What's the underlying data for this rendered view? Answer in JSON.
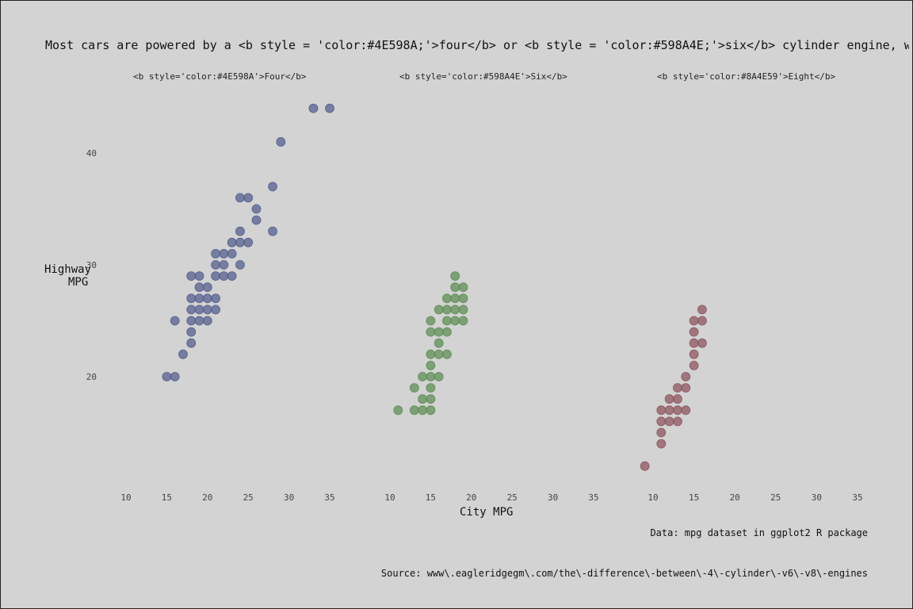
{
  "chart_data": {
    "type": "scatter",
    "title": "Most cars are powered by a <b style = 'color:#4E598A;'>four</b> or <b style = 'color:#598A4E;'>six</b> cylinder engine, wh",
    "xlabel": "City MPG",
    "ylabel_lines": [
      "Highway",
      "MPG"
    ],
    "x_ticks": [
      "10",
      "15",
      "20",
      "25",
      "30",
      "35"
    ],
    "y_ticks": [
      "20",
      "30",
      "40"
    ],
    "xlim": [
      8,
      37
    ],
    "ylim": [
      11,
      45
    ],
    "grid": false,
    "facets": [
      {
        "label": "<b style='color:#4E598A'>Four</b>",
        "color": "#4E598A",
        "points": [
          [
            15,
            20
          ],
          [
            16,
            20
          ],
          [
            16,
            25
          ],
          [
            17,
            22
          ],
          [
            18,
            23
          ],
          [
            18,
            24
          ],
          [
            18,
            25
          ],
          [
            18,
            26
          ],
          [
            18,
            27
          ],
          [
            18,
            29
          ],
          [
            19,
            25
          ],
          [
            19,
            26
          ],
          [
            19,
            27
          ],
          [
            19,
            28
          ],
          [
            19,
            29
          ],
          [
            20,
            25
          ],
          [
            20,
            26
          ],
          [
            20,
            27
          ],
          [
            20,
            28
          ],
          [
            21,
            26
          ],
          [
            21,
            27
          ],
          [
            21,
            29
          ],
          [
            21,
            30
          ],
          [
            21,
            31
          ],
          [
            22,
            29
          ],
          [
            22,
            30
          ],
          [
            22,
            31
          ],
          [
            23,
            29
          ],
          [
            23,
            31
          ],
          [
            23,
            32
          ],
          [
            24,
            30
          ],
          [
            24,
            32
          ],
          [
            24,
            33
          ],
          [
            24,
            36
          ],
          [
            25,
            32
          ],
          [
            25,
            36
          ],
          [
            26,
            34
          ],
          [
            26,
            35
          ],
          [
            28,
            33
          ],
          [
            28,
            37
          ],
          [
            29,
            41
          ],
          [
            33,
            44
          ],
          [
            35,
            44
          ]
        ]
      },
      {
        "label": "<b style='color:#598A4E'>Six</b>",
        "color": "#598A4E",
        "points": [
          [
            11,
            17
          ],
          [
            13,
            17
          ],
          [
            13,
            19
          ],
          [
            14,
            17
          ],
          [
            14,
            18
          ],
          [
            14,
            20
          ],
          [
            15,
            17
          ],
          [
            15,
            18
          ],
          [
            15,
            19
          ],
          [
            15,
            20
          ],
          [
            15,
            21
          ],
          [
            15,
            22
          ],
          [
            15,
            24
          ],
          [
            15,
            25
          ],
          [
            16,
            20
          ],
          [
            16,
            22
          ],
          [
            16,
            23
          ],
          [
            16,
            24
          ],
          [
            16,
            26
          ],
          [
            17,
            22
          ],
          [
            17,
            24
          ],
          [
            17,
            25
          ],
          [
            17,
            26
          ],
          [
            17,
            27
          ],
          [
            18,
            25
          ],
          [
            18,
            26
          ],
          [
            18,
            27
          ],
          [
            18,
            28
          ],
          [
            18,
            29
          ],
          [
            19,
            25
          ],
          [
            19,
            26
          ],
          [
            19,
            27
          ],
          [
            19,
            28
          ]
        ]
      },
      {
        "label": "<b style='color:#8A4E59'>Eight</b>",
        "color": "#8A4E59",
        "points": [
          [
            9,
            12
          ],
          [
            11,
            14
          ],
          [
            11,
            15
          ],
          [
            11,
            16
          ],
          [
            11,
            17
          ],
          [
            12,
            16
          ],
          [
            12,
            17
          ],
          [
            12,
            18
          ],
          [
            13,
            16
          ],
          [
            13,
            17
          ],
          [
            13,
            18
          ],
          [
            13,
            19
          ],
          [
            14,
            17
          ],
          [
            14,
            19
          ],
          [
            14,
            20
          ],
          [
            15,
            21
          ],
          [
            15,
            22
          ],
          [
            15,
            23
          ],
          [
            15,
            24
          ],
          [
            15,
            25
          ],
          [
            16,
            23
          ],
          [
            16,
            25
          ],
          [
            16,
            26
          ]
        ]
      }
    ]
  },
  "caption": {
    "data": "Data: mpg dataset in ggplot2 R package",
    "source": "Source: www\\.eagleridgegm\\.com/the\\-difference\\-between\\-4\\-cylinder\\-v6\\-v8\\-engines"
  }
}
